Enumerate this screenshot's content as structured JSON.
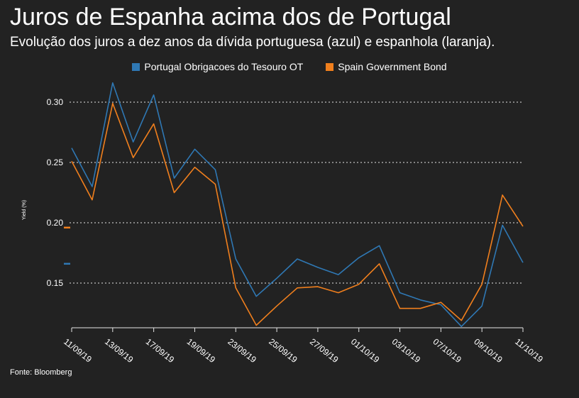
{
  "title": "Juros de Espanha acima dos de Portugal",
  "subtitle": "Evolução dos juros a dez anos da dívida portuguesa (azul) e espanhola (laranja).",
  "source": "Fonte: Bloomberg",
  "colors": {
    "background": "#222222",
    "portugal": "#2f78b4",
    "spain": "#f07f1d",
    "grid": "#e6e6e6",
    "text": "#ffffff"
  },
  "chart_data": {
    "type": "line",
    "title": "Juros de Espanha acima dos de Portugal",
    "xlabel": "",
    "ylabel": "Yield (%)",
    "ylim": [
      0.11,
      0.31
    ],
    "yticks": [
      0.15,
      0.2,
      0.25,
      0.3
    ],
    "ytick_labels": [
      "0.15",
      "0.20",
      "0.25",
      "0.30"
    ],
    "grid": true,
    "legend_position": "top-center",
    "x_index": [
      0,
      1,
      2,
      3,
      4,
      5,
      6,
      7,
      8,
      9,
      10,
      11,
      12,
      13,
      14,
      15,
      16,
      17,
      18,
      19,
      20,
      21,
      22
    ],
    "xtick_positions": [
      0,
      2,
      4,
      6,
      8,
      10,
      12,
      14,
      16,
      18,
      20,
      22
    ],
    "xtick_labels": [
      "11/09/19",
      "13/09/19",
      "17/09/19",
      "19/09/19",
      "23/09/19",
      "25/09/19",
      "27/09/19",
      "01/10/19",
      "03/10/19",
      "07/10/19",
      "09/10/19",
      "11/10/19"
    ],
    "series": [
      {
        "name": "Portugal Obrigacoes do Tesouro OT",
        "color": "#2f78b4",
        "values": [
          0.262,
          0.23,
          0.316,
          0.267,
          0.306,
          0.237,
          0.261,
          0.244,
          0.17,
          0.139,
          0.154,
          0.17,
          0.163,
          0.157,
          0.171,
          0.181,
          0.142,
          0.136,
          0.132,
          0.114,
          0.131,
          0.198,
          0.167
        ],
        "last_marker": 0.166
      },
      {
        "name": "Spain Government Bond",
        "color": "#f07f1d",
        "values": [
          0.251,
          0.219,
          0.299,
          0.254,
          0.282,
          0.225,
          0.246,
          0.232,
          0.146,
          0.115,
          0.131,
          0.146,
          0.147,
          0.142,
          0.149,
          0.166,
          0.129,
          0.129,
          0.134,
          0.119,
          0.149,
          0.223,
          0.197
        ],
        "last_marker": 0.196
      }
    ]
  }
}
